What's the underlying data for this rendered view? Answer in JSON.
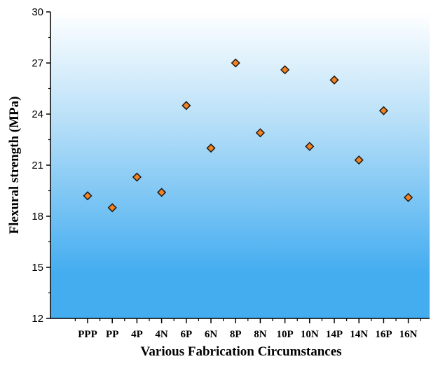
{
  "chart_data": {
    "type": "scatter",
    "title": "",
    "xlabel": "Various Fabrication Circumstances",
    "ylabel": "Flexural strength (MPa)",
    "categories": [
      "PPP",
      "PP",
      "4P",
      "4N",
      "6P",
      "6N",
      "8P",
      "8N",
      "10P",
      "10N",
      "14P",
      "14N",
      "16P",
      "16N"
    ],
    "values": [
      19.2,
      18.5,
      20.3,
      19.4,
      24.5,
      22.0,
      27.0,
      22.9,
      26.6,
      22.1,
      26.0,
      21.3,
      24.2,
      19.1
    ],
    "ylim": [
      12,
      30
    ],
    "yticks": [
      "12",
      "15",
      "18",
      "21",
      "24",
      "27",
      "30"
    ],
    "grid": false,
    "colors": {
      "marker_fill": "#F5821F",
      "marker_stroke": "#1a1a1a",
      "background_top": "#ffffff",
      "background_bottom": "#44ADF0"
    }
  }
}
